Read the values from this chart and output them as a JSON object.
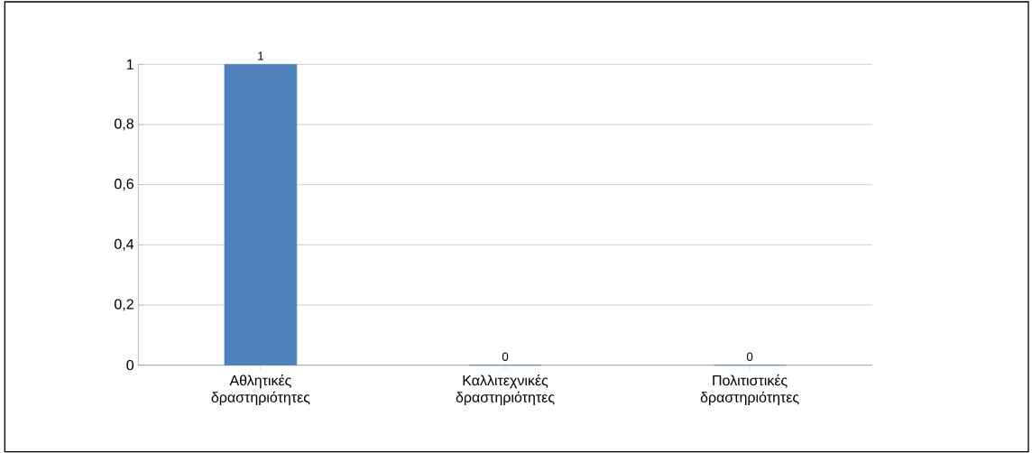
{
  "chart_data": {
    "type": "bar",
    "categories": [
      "Αθλητικές δραστηριότητες",
      "Καλλιτεχνικές δραστηριότητες",
      "Πολιτιστικές δραστηριότητες"
    ],
    "values": [
      1,
      0,
      0
    ],
    "color": "#4f81bd",
    "data_labels": true,
    "grid": "y",
    "ylim": [
      0,
      1
    ],
    "yticks": [
      0,
      {
        "value": 0.2,
        "label": "0,2"
      },
      {
        "value": 0.4,
        "label": "0,4"
      },
      {
        "value": 0.6,
        "label": "0,6"
      },
      {
        "value": 0.8,
        "label": "0,8"
      },
      1
    ]
  }
}
